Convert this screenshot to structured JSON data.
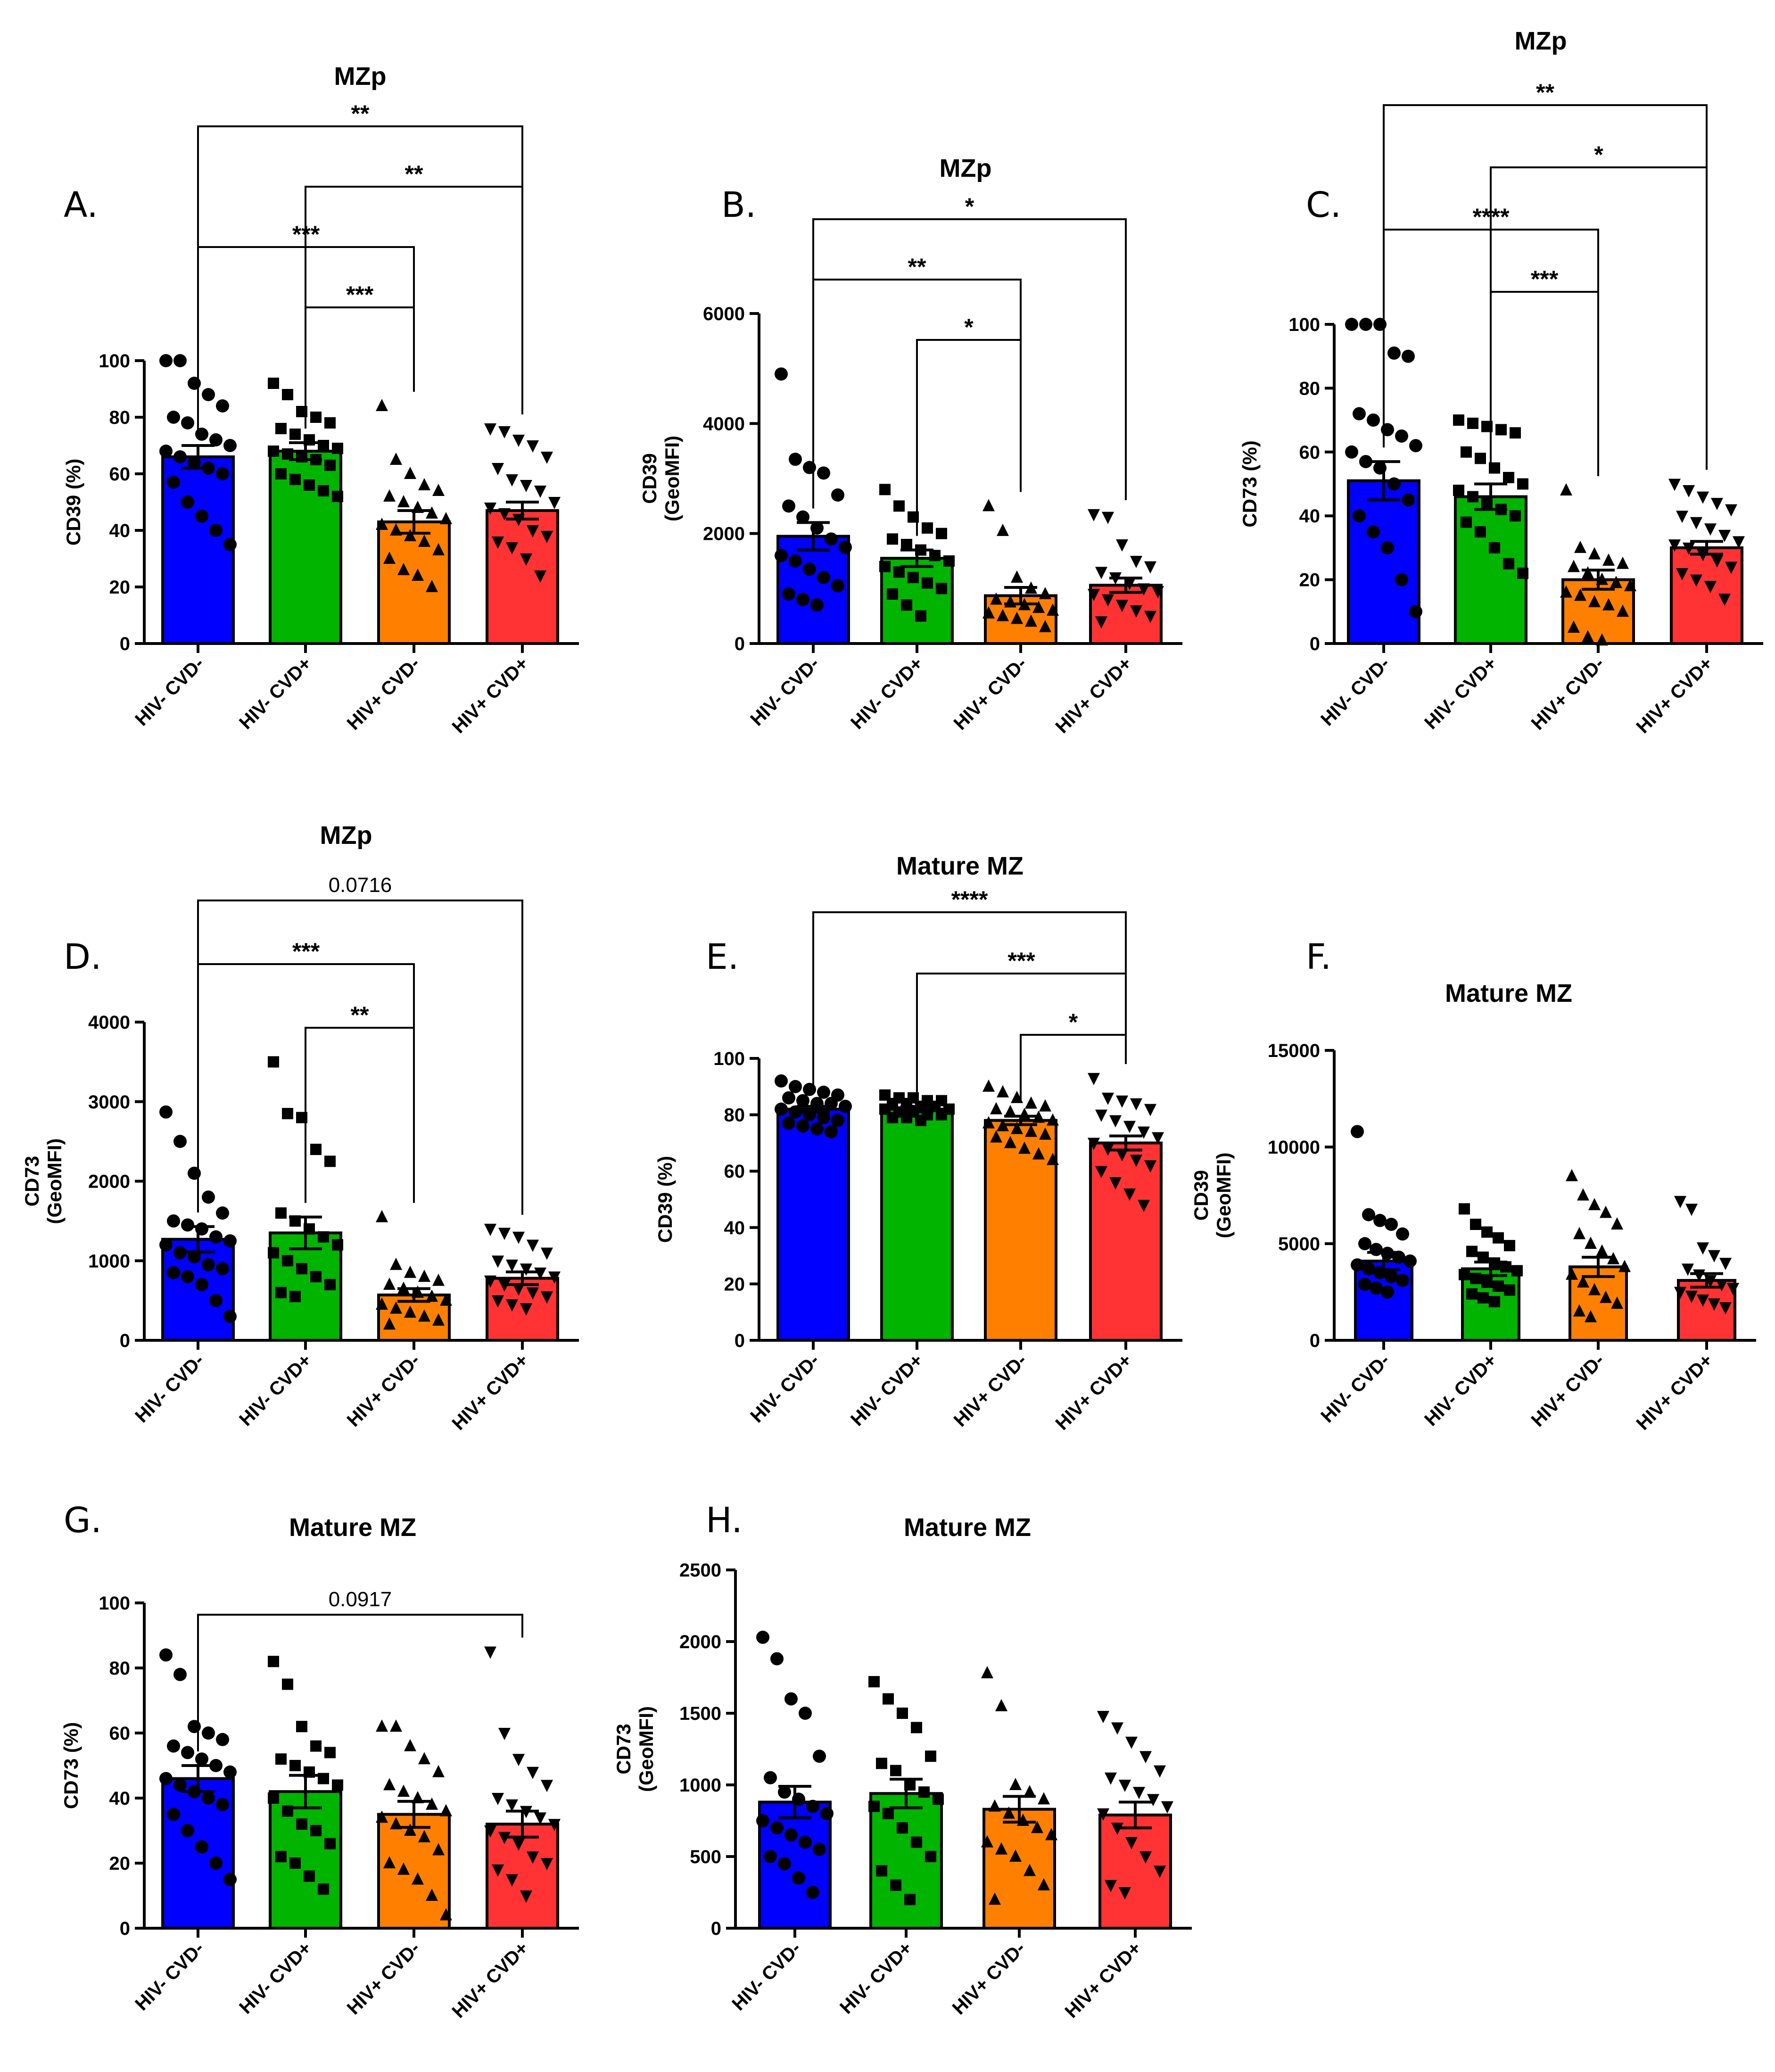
{
  "group_colors": [
    "#0000ff",
    "#00b400",
    "#ff8000",
    "#ff3333"
  ],
  "marker_shapes": [
    "circle",
    "square",
    "triangle-up",
    "triangle-down"
  ],
  "chart_data": [
    {
      "panel": "A.",
      "type": "bar",
      "title": "MZp",
      "ylabel": [
        "CD39 (%)"
      ],
      "ylim": [
        0,
        100
      ],
      "yticks": [
        0,
        20,
        40,
        60,
        80,
        100
      ],
      "categories": [
        "HIV- CVD-",
        "HIV- CVD+",
        "HIV+ CVD-",
        "HIV+ CVD+"
      ],
      "means": [
        66,
        68,
        43,
        47
      ],
      "sem": [
        4,
        3,
        4,
        3
      ],
      "points": [
        [
          100,
          100,
          92,
          88,
          84,
          80,
          78,
          74,
          72,
          70,
          68,
          66,
          64,
          62,
          60,
          57,
          50,
          45,
          40,
          35
        ],
        [
          92,
          88,
          82,
          80,
          78,
          76,
          74,
          72,
          70,
          69,
          68,
          67,
          66,
          65,
          63,
          60,
          58,
          56,
          54,
          52
        ],
        [
          84,
          65,
          60,
          56,
          54,
          52,
          50,
          48,
          46,
          44,
          42,
          40,
          38,
          36,
          33,
          30,
          26,
          24,
          20
        ],
        [
          76,
          75,
          72,
          70,
          66,
          62,
          58,
          56,
          54,
          50,
          48,
          46,
          44,
          40,
          38,
          36,
          34,
          30,
          24
        ]
      ],
      "brackets": [
        {
          "from": 0,
          "to": 3,
          "label": "**"
        },
        {
          "from": 1,
          "to": 3,
          "label": "**"
        },
        {
          "from": 0,
          "to": 2,
          "label": "***"
        },
        {
          "from": 1,
          "to": 2,
          "label": "***"
        }
      ]
    },
    {
      "panel": "B.",
      "type": "bar",
      "title": "MZp",
      "ylabel": [
        "CD39",
        "(GeoMFI)"
      ],
      "ylim": [
        0,
        6000
      ],
      "yticks": [
        0,
        2000,
        4000,
        6000
      ],
      "categories": [
        "HIV- CVD-",
        "HIV- CVD+",
        "HIV+ CVD-",
        "HIV+ CVD+"
      ],
      "means": [
        1950,
        1550,
        870,
        1060
      ],
      "sem": [
        250,
        150,
        150,
        130
      ],
      "points": [
        [
          4900,
          3350,
          3200,
          3100,
          2700,
          2500,
          2300,
          2100,
          1900,
          1750,
          1600,
          1500,
          1350,
          1200,
          1050,
          900,
          800,
          700
        ],
        [
          2800,
          2500,
          2300,
          2100,
          2000,
          1900,
          1800,
          1700,
          1600,
          1500,
          1400,
          1300,
          1200,
          1100,
          1000,
          900,
          700,
          500
        ],
        [
          2500,
          2050,
          1200,
          1000,
          900,
          800,
          750,
          700,
          650,
          600,
          550,
          500,
          450,
          400,
          300
        ],
        [
          2350,
          2300,
          1800,
          1500,
          1400,
          1300,
          1200,
          1100,
          1000,
          950,
          900,
          800,
          700,
          600,
          500,
          400
        ]
      ],
      "brackets": [
        {
          "from": 0,
          "to": 3,
          "label": "*"
        },
        {
          "from": 0,
          "to": 2,
          "label": "**"
        },
        {
          "from": 1,
          "to": 2,
          "label": "*"
        }
      ]
    },
    {
      "panel": "C.",
      "type": "bar",
      "title": "MZp",
      "ylabel": [
        "CD73 (%)"
      ],
      "ylim": [
        0,
        100
      ],
      "yticks": [
        0,
        20,
        40,
        60,
        80,
        100
      ],
      "categories": [
        "HIV- CVD-",
        "HIV- CVD+",
        "HIV+ CVD-",
        "HIV+ CVD+"
      ],
      "means": [
        51,
        46,
        20,
        30
      ],
      "sem": [
        6,
        4,
        3,
        2
      ],
      "points": [
        [
          100,
          100,
          100,
          91,
          90,
          72,
          70,
          67,
          65,
          62,
          60,
          57,
          55,
          50,
          45,
          40,
          35,
          30,
          20,
          10
        ],
        [
          70,
          69,
          68,
          67,
          66,
          60,
          58,
          55,
          52,
          50,
          48,
          46,
          44,
          42,
          40,
          38,
          35,
          30,
          25,
          22
        ],
        [
          48,
          30,
          28,
          26,
          25,
          24,
          22,
          20,
          19,
          18,
          16,
          15,
          13,
          12,
          10,
          5,
          2,
          1
        ],
        [
          50,
          48,
          46,
          44,
          42,
          40,
          38,
          36,
          34,
          32,
          31,
          30,
          28,
          26,
          24,
          22,
          20,
          18,
          14
        ]
      ],
      "brackets": [
        {
          "from": 0,
          "to": 3,
          "label": "**"
        },
        {
          "from": 1,
          "to": 3,
          "label": "*"
        },
        {
          "from": 0,
          "to": 2,
          "label": "****"
        },
        {
          "from": 1,
          "to": 2,
          "label": "***"
        }
      ]
    },
    {
      "panel": "D.",
      "type": "bar",
      "title": "MZp",
      "ylabel": [
        "CD73",
        "(GeoMFI)"
      ],
      "ylim": [
        0,
        4000
      ],
      "yticks": [
        0,
        1000,
        2000,
        3000,
        4000
      ],
      "categories": [
        "HIV- CVD-",
        "HIV- CVD+",
        "HIV+ CVD-",
        "HIV+ CVD+"
      ],
      "means": [
        1270,
        1350,
        570,
        780
      ],
      "sem": [
        160,
        200,
        80,
        80
      ],
      "points": [
        [
          2870,
          2500,
          2100,
          1800,
          1600,
          1500,
          1450,
          1400,
          1300,
          1250,
          1200,
          1100,
          1050,
          950,
          900,
          850,
          800,
          700,
          500,
          300
        ],
        [
          3500,
          2850,
          2800,
          2400,
          2250,
          1600,
          1500,
          1400,
          1300,
          1200,
          1100,
          1000,
          900,
          800,
          700,
          600,
          550
        ],
        [
          1550,
          950,
          850,
          800,
          750,
          700,
          650,
          600,
          550,
          500,
          450,
          400,
          350,
          300,
          250,
          200
        ],
        [
          1400,
          1350,
          1300,
          1200,
          1100,
          1000,
          950,
          900,
          850,
          800,
          750,
          700,
          650,
          600,
          550,
          500,
          450,
          400
        ]
      ],
      "brackets": [
        {
          "from": 0,
          "to": 3,
          "label": "0.0716"
        },
        {
          "from": 0,
          "to": 2,
          "label": "***"
        },
        {
          "from": 1,
          "to": 2,
          "label": "**"
        }
      ]
    },
    {
      "panel": "E.",
      "type": "bar",
      "title": "Mature MZ",
      "ylabel": [
        "CD39 (%)"
      ],
      "ylim": [
        0,
        100
      ],
      "yticks": [
        0,
        20,
        40,
        60,
        80,
        100
      ],
      "categories": [
        "HIV- CVD-",
        "HIV- CVD+",
        "HIV+ CVD-",
        "HIV+ CVD+"
      ],
      "means": [
        82,
        82,
        78,
        70
      ],
      "sem": [
        1,
        1,
        1.5,
        2.5
      ],
      "points": [
        [
          92,
          90,
          89,
          88,
          87,
          86,
          85,
          84,
          84,
          83,
          82,
          81,
          80,
          79,
          78,
          77,
          76,
          75,
          74
        ],
        [
          87,
          86,
          86,
          85,
          85,
          84,
          84,
          83,
          83,
          82,
          82,
          81,
          81,
          80,
          80,
          79,
          79,
          78
        ],
        [
          90,
          88,
          86,
          84,
          83,
          82,
          81,
          80,
          79,
          78,
          77,
          76,
          75,
          74,
          73,
          72,
          70,
          68,
          66,
          64
        ],
        [
          93,
          86,
          85,
          84,
          82,
          80,
          78,
          76,
          74,
          72,
          70,
          68,
          66,
          64,
          62,
          60,
          56,
          52,
          48
        ]
      ],
      "brackets": [
        {
          "from": 0,
          "to": 3,
          "label": "****"
        },
        {
          "from": 1,
          "to": 3,
          "label": "***"
        },
        {
          "from": 2,
          "to": 3,
          "label": "*"
        }
      ]
    },
    {
      "panel": "F.",
      "type": "bar",
      "title": "Mature MZ",
      "ylabel": [
        "CD39",
        "(GeoMFI)"
      ],
      "ylim": [
        0,
        15000
      ],
      "yticks": [
        0,
        5000,
        10000,
        15000
      ],
      "categories": [
        "HIV- CVD-",
        "HIV- CVD+",
        "HIV+ CVD-",
        "HIV+ CVD+"
      ],
      "means": [
        4100,
        3700,
        3800,
        3100
      ],
      "sem": [
        450,
        350,
        500,
        350
      ],
      "points": [
        [
          10800,
          6500,
          6200,
          6000,
          5500,
          5000,
          4700,
          4500,
          4300,
          4100,
          3900,
          3700,
          3500,
          3300,
          3100,
          2900,
          2700,
          2500
        ],
        [
          6800,
          6000,
          5600,
          5300,
          4900,
          4600,
          4300,
          4000,
          3800,
          3600,
          3400,
          3200,
          3000,
          2800,
          2600,
          2400,
          2200,
          2000
        ],
        [
          8500,
          7500,
          7000,
          6600,
          6000,
          5500,
          5000,
          4600,
          4200,
          3800,
          3400,
          3000,
          2600,
          2200,
          1900,
          1500,
          1200
        ],
        [
          7200,
          6800,
          4800,
          4400,
          4000,
          3700,
          3400,
          3100,
          2900,
          2700,
          2500,
          2300,
          2100,
          1900,
          1700
        ]
      ],
      "brackets": []
    },
    {
      "panel": "G.",
      "type": "bar",
      "title": "Mature MZ",
      "ylabel": [
        "CD73 (%)"
      ],
      "ylim": [
        0,
        100
      ],
      "yticks": [
        0,
        20,
        40,
        60,
        80,
        100
      ],
      "categories": [
        "HIV- CVD-",
        "HIV- CVD+",
        "HIV+ CVD-",
        "HIV+ CVD+"
      ],
      "means": [
        46,
        42,
        35,
        32
      ],
      "sem": [
        4,
        5,
        4,
        4
      ],
      "points": [
        [
          84,
          78,
          62,
          60,
          58,
          56,
          54,
          52,
          50,
          48,
          46,
          44,
          42,
          40,
          38,
          35,
          30,
          25,
          20,
          15
        ],
        [
          82,
          75,
          62,
          56,
          54,
          52,
          50,
          48,
          46,
          44,
          40,
          36,
          32,
          30,
          26,
          22,
          20,
          16,
          12
        ],
        [
          62,
          62,
          56,
          52,
          48,
          44,
          42,
          40,
          38,
          36,
          34,
          32,
          30,
          28,
          24,
          20,
          18,
          15,
          10,
          4
        ],
        [
          85,
          60,
          52,
          48,
          44,
          40,
          38,
          36,
          34,
          32,
          30,
          28,
          26,
          22,
          20,
          18,
          15,
          10
        ]
      ],
      "brackets": [
        {
          "from": 0,
          "to": 3,
          "label": "0.0917"
        }
      ]
    },
    {
      "panel": "H.",
      "type": "bar",
      "title": "Mature MZ",
      "ylabel": [
        "CD73",
        "(GeoMFI)"
      ],
      "ylim": [
        0,
        2500
      ],
      "yticks": [
        0,
        500,
        1000,
        1500,
        2000,
        2500
      ],
      "categories": [
        "HIV- CVD-",
        "HIV- CVD+",
        "HIV+ CVD-",
        "HIV+ CVD+"
      ],
      "means": [
        880,
        940,
        830,
        790
      ],
      "sem": [
        110,
        100,
        90,
        90
      ],
      "points": [
        [
          2030,
          1880,
          1600,
          1500,
          1200,
          1050,
          950,
          900,
          850,
          800,
          750,
          700,
          650,
          600,
          550,
          500,
          450,
          350,
          250
        ],
        [
          1720,
          1600,
          1500,
          1400,
          1200,
          1150,
          1100,
          1000,
          950,
          900,
          850,
          800,
          700,
          600,
          500,
          400,
          300,
          200
        ],
        [
          1780,
          1550,
          1000,
          950,
          900,
          850,
          800,
          750,
          700,
          650,
          600,
          550,
          500,
          400,
          300,
          200
        ],
        [
          1480,
          1400,
          1300,
          1200,
          1100,
          1050,
          1000,
          950,
          900,
          850,
          800,
          700,
          600,
          500,
          400,
          300,
          250
        ]
      ],
      "brackets": []
    }
  ]
}
